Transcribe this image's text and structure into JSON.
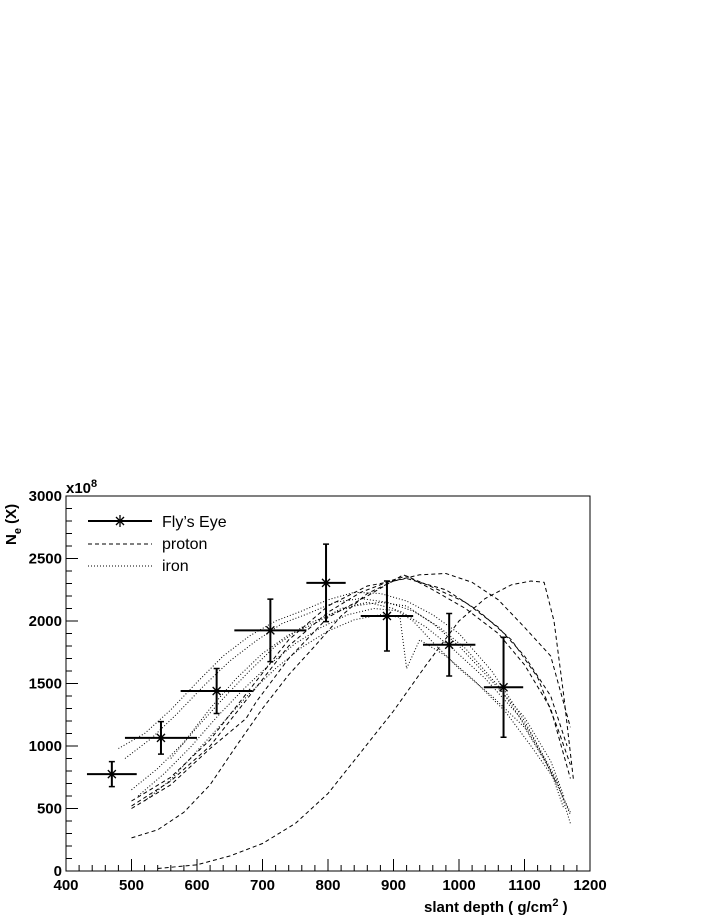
{
  "chart_data": {
    "type": "line",
    "xlabel_main": "slant depth ( g/cm",
    "xlabel_sup": "2",
    "xlabel_end": " )",
    "ylabel_main": "N",
    "ylabel_sub": "e",
    "ylabel_end": " (X)",
    "y_multiplier_base": "x10",
    "y_multiplier_exp": "8",
    "xlim": [
      400,
      1200
    ],
    "ylim": [
      0,
      3000
    ],
    "x_ticks": [
      400,
      500,
      600,
      700,
      800,
      900,
      1000,
      1100,
      1200
    ],
    "y_ticks": [
      0,
      500,
      1000,
      1500,
      2000,
      2500,
      3000
    ],
    "grid": false,
    "legend_position": "top-left",
    "legend": [
      {
        "label": "Fly’s Eye",
        "style": "solid-with-markers"
      },
      {
        "label": "proton",
        "style": "dashed"
      },
      {
        "label": "iron",
        "style": "dotted"
      }
    ],
    "data_series": {
      "name": "Fly’s Eye",
      "points": [
        {
          "x": 470,
          "y": 775,
          "xerr": 38,
          "yerr": 100
        },
        {
          "x": 545,
          "y": 1065,
          "xerr": 55,
          "yerr": 130
        },
        {
          "x": 630,
          "y": 1440,
          "xerr": 55,
          "yerr": 180
        },
        {
          "x": 712,
          "y": 1925,
          "xerr": 55,
          "yerr": 250
        },
        {
          "x": 797,
          "y": 2305,
          "xerr": 30,
          "yerr": 310
        },
        {
          "x": 890,
          "y": 2040,
          "xerr": 40,
          "yerr": 280
        },
        {
          "x": 985,
          "y": 1810,
          "xerr": 40,
          "yerr": 250
        },
        {
          "x": 1068,
          "y": 1470,
          "xerr": 30,
          "yerr": 400
        }
      ]
    },
    "simulated_series": [
      {
        "group": "proton",
        "points": [
          [
            500,
            520
          ],
          [
            560,
            720
          ],
          [
            620,
            1000
          ],
          [
            680,
            1400
          ],
          [
            740,
            1800
          ],
          [
            800,
            2070
          ],
          [
            850,
            2230
          ],
          [
            900,
            2330
          ],
          [
            920,
            2360
          ],
          [
            960,
            2250
          ],
          [
            1010,
            2100
          ],
          [
            1060,
            1900
          ],
          [
            1100,
            1650
          ],
          [
            1140,
            1300
          ],
          [
            1170,
            740
          ]
        ]
      },
      {
        "group": "proton",
        "points": [
          [
            500,
            560
          ],
          [
            560,
            750
          ],
          [
            620,
            1050
          ],
          [
            680,
            1450
          ],
          [
            740,
            1850
          ],
          [
            800,
            2120
          ],
          [
            860,
            2280
          ],
          [
            920,
            2340
          ],
          [
            980,
            2250
          ],
          [
            1030,
            2080
          ],
          [
            1080,
            1850
          ],
          [
            1120,
            1550
          ],
          [
            1150,
            1150
          ],
          [
            1170,
            850
          ]
        ]
      },
      {
        "group": "proton",
        "points": [
          [
            500,
            500
          ],
          [
            560,
            690
          ],
          [
            620,
            980
          ],
          [
            675,
            1220
          ],
          [
            690,
            1350
          ],
          [
            740,
            1700
          ],
          [
            800,
            2030
          ],
          [
            860,
            2200
          ],
          [
            915,
            2370
          ],
          [
            960,
            2270
          ],
          [
            1010,
            2150
          ],
          [
            1060,
            1950
          ],
          [
            1100,
            1720
          ],
          [
            1140,
            1400
          ],
          [
            1165,
            1000
          ]
        ]
      },
      {
        "group": "proton",
        "points": [
          [
            500,
            265
          ],
          [
            540,
            330
          ],
          [
            580,
            470
          ],
          [
            620,
            690
          ],
          [
            660,
            1000
          ],
          [
            700,
            1300
          ],
          [
            740,
            1570
          ],
          [
            780,
            1800
          ],
          [
            820,
            2040
          ],
          [
            860,
            2220
          ],
          [
            900,
            2320
          ],
          [
            940,
            2370
          ],
          [
            980,
            2380
          ],
          [
            1020,
            2310
          ],
          [
            1060,
            2170
          ],
          [
            1100,
            1950
          ],
          [
            1140,
            1720
          ],
          [
            1170,
            1150
          ]
        ]
      },
      {
        "group": "proton",
        "points": [
          [
            540,
            20
          ],
          [
            600,
            50
          ],
          [
            650,
            120
          ],
          [
            700,
            220
          ],
          [
            750,
            380
          ],
          [
            800,
            620
          ],
          [
            850,
            950
          ],
          [
            900,
            1280
          ],
          [
            950,
            1650
          ],
          [
            1000,
            2000
          ],
          [
            1040,
            2180
          ],
          [
            1080,
            2290
          ],
          [
            1110,
            2320
          ],
          [
            1130,
            2310
          ],
          [
            1145,
            2000
          ],
          [
            1160,
            1400
          ],
          [
            1175,
            720
          ]
        ]
      },
      {
        "group": "iron",
        "points": [
          [
            480,
            980
          ],
          [
            520,
            1100
          ],
          [
            560,
            1290
          ],
          [
            600,
            1510
          ],
          [
            640,
            1720
          ],
          [
            680,
            1880
          ],
          [
            720,
            2000
          ],
          [
            760,
            2080
          ],
          [
            800,
            2170
          ],
          [
            840,
            2230
          ],
          [
            880,
            2220
          ],
          [
            920,
            2160
          ],
          [
            960,
            2050
          ],
          [
            1000,
            1900
          ],
          [
            1050,
            1600
          ],
          [
            1100,
            1200
          ],
          [
            1150,
            720
          ],
          [
            1170,
            380
          ]
        ]
      },
      {
        "group": "iron",
        "points": [
          [
            490,
            900
          ],
          [
            530,
            1060
          ],
          [
            570,
            1260
          ],
          [
            610,
            1480
          ],
          [
            650,
            1680
          ],
          [
            690,
            1840
          ],
          [
            730,
            1980
          ],
          [
            770,
            2060
          ],
          [
            810,
            2150
          ],
          [
            850,
            2180
          ],
          [
            890,
            2150
          ],
          [
            930,
            2080
          ],
          [
            970,
            1950
          ],
          [
            1010,
            1780
          ],
          [
            1060,
            1480
          ],
          [
            1110,
            1100
          ],
          [
            1150,
            700
          ]
        ]
      },
      {
        "group": "iron",
        "points": [
          [
            500,
            650
          ],
          [
            540,
            820
          ],
          [
            580,
            1030
          ],
          [
            620,
            1300
          ],
          [
            660,
            1540
          ],
          [
            700,
            1740
          ],
          [
            740,
            1890
          ],
          [
            780,
            1980
          ],
          [
            820,
            2100
          ],
          [
            860,
            2150
          ],
          [
            900,
            2100
          ],
          [
            930,
            2000
          ],
          [
            960,
            1830
          ],
          [
            1000,
            1620
          ],
          [
            1050,
            1400
          ],
          [
            1100,
            1150
          ],
          [
            1140,
            800
          ],
          [
            1160,
            500
          ]
        ]
      },
      {
        "group": "iron",
        "points": [
          [
            510,
            600
          ],
          [
            550,
            780
          ],
          [
            590,
            990
          ],
          [
            630,
            1230
          ],
          [
            670,
            1450
          ],
          [
            710,
            1650
          ],
          [
            750,
            1820
          ],
          [
            790,
            1950
          ],
          [
            830,
            2050
          ],
          [
            870,
            2100
          ],
          [
            910,
            2080
          ],
          [
            950,
            1950
          ],
          [
            990,
            1780
          ],
          [
            1040,
            1540
          ],
          [
            1090,
            1250
          ],
          [
            1130,
            900
          ],
          [
            1170,
            470
          ]
        ]
      },
      {
        "group": "iron",
        "points": [
          [
            520,
            560
          ],
          [
            560,
            730
          ],
          [
            600,
            960
          ],
          [
            640,
            1190
          ],
          [
            680,
            1420
          ],
          [
            720,
            1620
          ],
          [
            760,
            1790
          ],
          [
            800,
            1920
          ],
          [
            840,
            2010
          ],
          [
            880,
            2050
          ],
          [
            910,
            2030
          ],
          [
            920,
            1620
          ],
          [
            940,
            1850
          ],
          [
            980,
            1720
          ],
          [
            1020,
            1540
          ],
          [
            1070,
            1280
          ],
          [
            1110,
            1000
          ],
          [
            1150,
            700
          ],
          [
            1170,
            450
          ]
        ]
      },
      {
        "group": "iron",
        "points": [
          [
            560,
            900
          ],
          [
            600,
            1150
          ],
          [
            640,
            1380
          ],
          [
            680,
            1600
          ],
          [
            720,
            1800
          ],
          [
            760,
            1950
          ],
          [
            800,
            2050
          ],
          [
            840,
            2120
          ],
          [
            880,
            2150
          ],
          [
            920,
            2120
          ],
          [
            960,
            1980
          ],
          [
            1000,
            1800
          ],
          [
            1050,
            1520
          ],
          [
            1100,
            1230
          ],
          [
            1140,
            880
          ],
          [
            1160,
            600
          ]
        ]
      }
    ]
  }
}
